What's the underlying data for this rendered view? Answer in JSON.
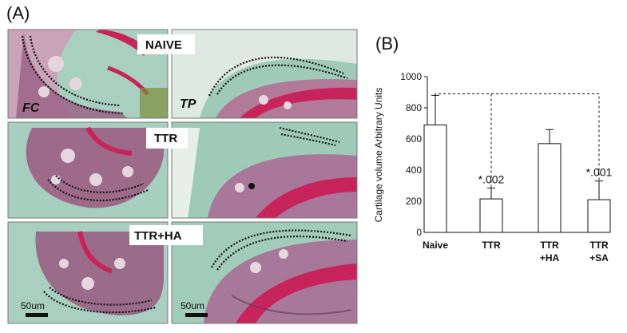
{
  "panel_a": {
    "label": "(A)",
    "rows": [
      {
        "label": "NAIVE"
      },
      {
        "label": "TTR"
      },
      {
        "label": "TTR+HA"
      }
    ],
    "region_left": "FC",
    "region_right": "TP",
    "scale_bar": "50um",
    "colors": {
      "tissue_green": "#8fc2b0",
      "cartilage_red": "#c8245c",
      "bone_purple": "#8a4e74",
      "pale": "#dfe8e2"
    }
  },
  "panel_b": {
    "label": "(B)"
  },
  "chart_data": {
    "type": "bar",
    "title": "",
    "ylabel": "Cartilage volume Arbitrary Units",
    "xlabel": "",
    "ylim": [
      0,
      1000
    ],
    "yticks": [
      0,
      200,
      400,
      600,
      800,
      1000
    ],
    "categories": [
      {
        "line1": "Naive",
        "line2": ""
      },
      {
        "line1": "TTR",
        "line2": ""
      },
      {
        "line1": "TTR",
        "line2": "+HA"
      },
      {
        "line1": "TTR",
        "line2": "+SA"
      }
    ],
    "values": [
      690,
      215,
      570,
      210
    ],
    "errors": [
      190,
      70,
      90,
      120
    ],
    "annotations": [
      "",
      "*.002",
      "",
      "*.001"
    ],
    "bar_color": "#ffffff",
    "grid": false,
    "comparison_brackets": true
  }
}
